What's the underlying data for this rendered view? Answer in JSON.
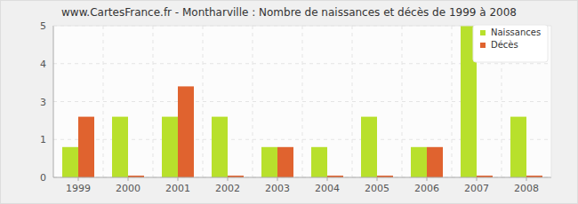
{
  "chart_data": {
    "type": "bar",
    "title": "www.CartesFrance.fr - Montharville : Nombre de naissances et décès de 1999 à 2008",
    "categories": [
      "1999",
      "2000",
      "2001",
      "2002",
      "2003",
      "2004",
      "2005",
      "2006",
      "2007",
      "2008"
    ],
    "series": [
      {
        "name": "Naissances",
        "color": "#b8e02c",
        "values": [
          1,
          2,
          2,
          2,
          1,
          1,
          2,
          1,
          5,
          2
        ]
      },
      {
        "name": "Décès",
        "color": "#e0632f",
        "values": [
          2,
          0,
          3,
          0,
          1,
          0,
          0,
          1,
          0,
          0
        ]
      }
    ],
    "ylim": [
      0,
      5
    ],
    "yticks": [
      {
        "value": 0,
        "label": "0"
      },
      {
        "value": 1.25,
        "label": "1"
      },
      {
        "value": 2.5,
        "label": "3"
      },
      {
        "value": 3.75,
        "label": "4"
      },
      {
        "value": 5,
        "label": "5"
      }
    ],
    "grid": true,
    "legend": "top-right"
  }
}
